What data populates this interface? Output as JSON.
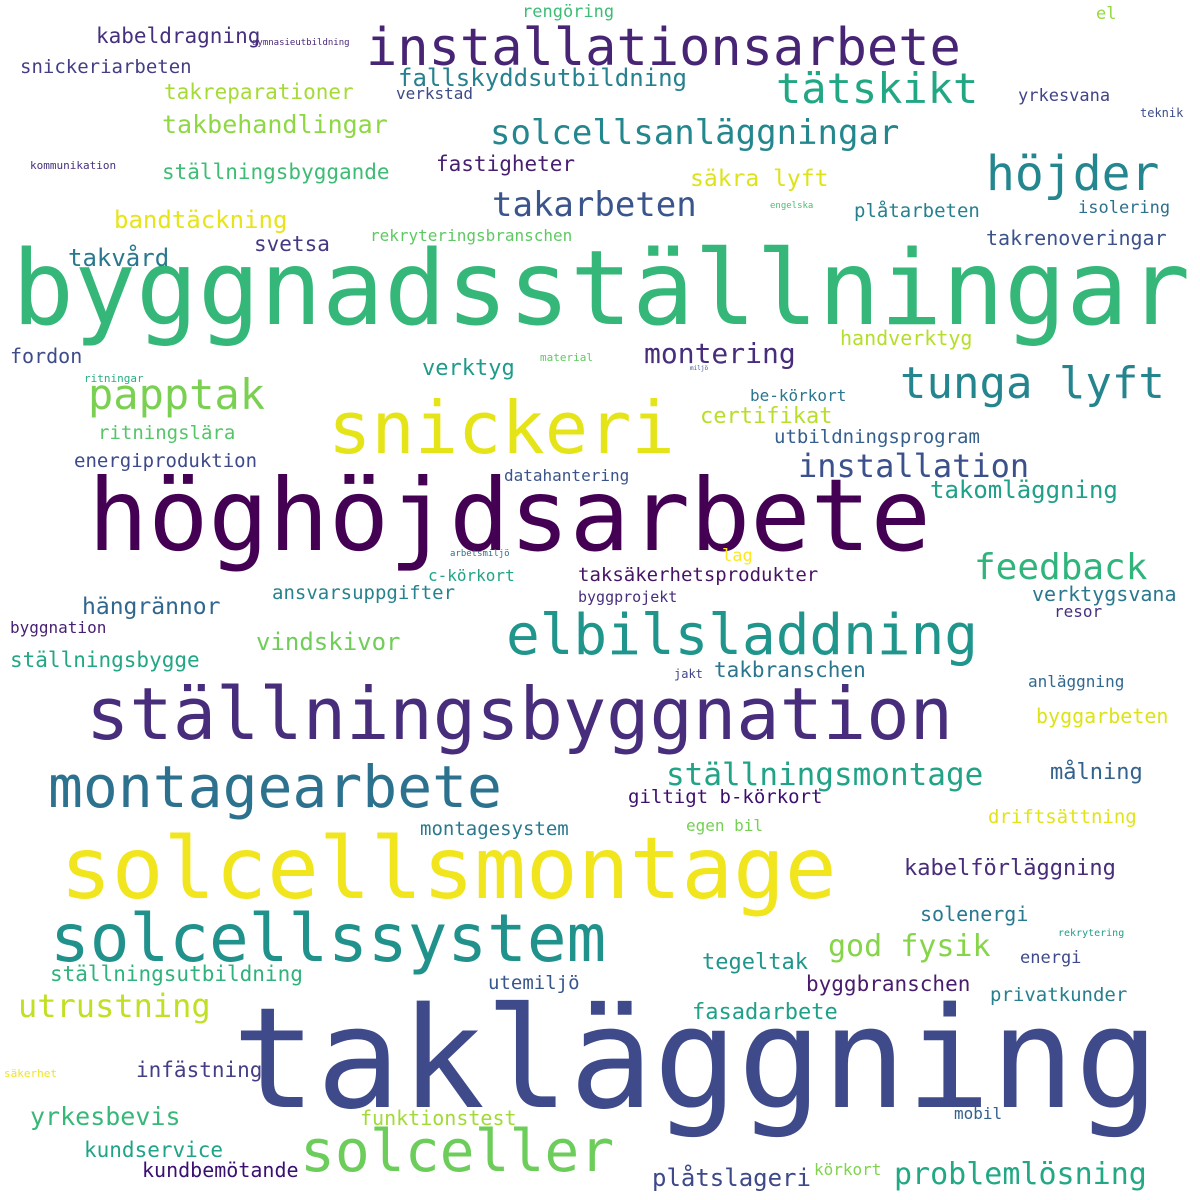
{
  "words": [
    {
      "text": "takläggning",
      "color": "#3f4a8a"
    },
    {
      "text": "byggnadsställningar",
      "color": "#35b779"
    },
    {
      "text": "höghöjdsarbete",
      "color": "#440154"
    },
    {
      "text": "solcellsmontage",
      "color": "#f1e51d"
    },
    {
      "text": "ställningsbyggnation",
      "color": "#472d7b"
    },
    {
      "text": "installationsarbete",
      "color": "#482475"
    },
    {
      "text": "solcellssystem",
      "color": "#21918c"
    },
    {
      "text": "elbilsladdning",
      "color": "#1f958b"
    },
    {
      "text": "montagearbete",
      "color": "#2c728e"
    },
    {
      "text": "snickeri",
      "color": "#e5e419"
    },
    {
      "text": "solceller",
      "color": "#6ccd5a"
    },
    {
      "text": "tunga lyft",
      "color": "#25858e"
    },
    {
      "text": "höjder",
      "color": "#24868e"
    },
    {
      "text": "tätskikt",
      "color": "#22a785"
    },
    {
      "text": "papptak",
      "color": "#7ad151"
    },
    {
      "text": "solcellsanläggningar",
      "color": "#24878e"
    },
    {
      "text": "installation",
      "color": "#3b518b"
    },
    {
      "text": "feedback",
      "color": "#2fb47c"
    },
    {
      "text": "ställningsmontage",
      "color": "#20a386"
    },
    {
      "text": "takarbeten",
      "color": "#39558c"
    },
    {
      "text": "montering",
      "color": "#472d7b"
    },
    {
      "text": "utrustning",
      "color": "#c2df23"
    },
    {
      "text": "problemlösning",
      "color": "#22a884"
    },
    {
      "text": "god fysik",
      "color": "#86d549"
    },
    {
      "text": "takomläggning",
      "color": "#1fa088"
    },
    {
      "text": "fallskyddsutbildning",
      "color": "#26818e"
    },
    {
      "text": "takbehandlingar",
      "color": "#8fd744"
    },
    {
      "text": "kabeldragning",
      "color": "#46307e"
    },
    {
      "text": "takreparationer",
      "color": "#a5db36"
    },
    {
      "text": "snickeriarbeten",
      "color": "#433e85"
    },
    {
      "text": "rengöring",
      "color": "#3cbc75"
    },
    {
      "text": "gymnasieutbildning",
      "color": "#482878"
    },
    {
      "text": "verkstad",
      "color": "#3e4989"
    },
    {
      "text": "yrkesvana",
      "color": "#414487"
    },
    {
      "text": "teknik",
      "color": "#3d4e8a"
    },
    {
      "text": "el",
      "color": "#95d840"
    },
    {
      "text": "kommunikation",
      "color": "#46327e"
    },
    {
      "text": "ställningsbyggande",
      "color": "#3dbc74"
    },
    {
      "text": "fastigheter",
      "color": "#481f70"
    },
    {
      "text": "säkra lyft",
      "color": "#dde318"
    },
    {
      "text": "engelska",
      "color": "#4ac16d"
    },
    {
      "text": "plåtarbeten",
      "color": "#27808e"
    },
    {
      "text": "isolering",
      "color": "#2d708e"
    },
    {
      "text": "bandtäckning",
      "color": "#e7e419"
    },
    {
      "text": "svetsa",
      "color": "#443983"
    },
    {
      "text": "rekryteringsbranschen",
      "color": "#5ec962"
    },
    {
      "text": "takrenoveringar",
      "color": "#3b528b"
    },
    {
      "text": "takvård",
      "color": "#2a788e"
    },
    {
      "text": "handverktyg",
      "color": "#b5de2b"
    },
    {
      "text": "fordon",
      "color": "#3e4c8a"
    },
    {
      "text": "material",
      "color": "#5ec962"
    },
    {
      "text": "ritningar",
      "color": "#29af7f"
    },
    {
      "text": "miljö",
      "color": "#3b528b"
    },
    {
      "text": "verktyg",
      "color": "#1e9b8a"
    },
    {
      "text": "be-körkort",
      "color": "#2a768e"
    },
    {
      "text": "certifikat",
      "color": "#b8de29"
    },
    {
      "text": "ritningslära",
      "color": "#54c568"
    },
    {
      "text": "utbildningsprogram",
      "color": "#355f8d"
    },
    {
      "text": "energiproduktion",
      "color": "#3e4989"
    },
    {
      "text": "datahantering",
      "color": "#3a538b"
    },
    {
      "text": "arbetsmiljö",
      "color": "#2c728e"
    },
    {
      "text": "lag",
      "color": "#fde725"
    },
    {
      "text": "c-körkort",
      "color": "#20a486"
    },
    {
      "text": "taksäkerhetsprodukter",
      "color": "#471365"
    },
    {
      "text": "hängrännor",
      "color": "#31668e"
    },
    {
      "text": "ansvarsuppgifter",
      "color": "#26828e"
    },
    {
      "text": "byggprojekt",
      "color": "#472f7d"
    },
    {
      "text": "verktygsvana",
      "color": "#2a788e"
    },
    {
      "text": "byggnation",
      "color": "#482071"
    },
    {
      "text": "resor",
      "color": "#462f7f"
    },
    {
      "text": "vindskivor",
      "color": "#6ece58"
    },
    {
      "text": "ställningsbygge",
      "color": "#22a785"
    },
    {
      "text": "takbranschen",
      "color": "#2b758e"
    },
    {
      "text": "jakt",
      "color": "#404688"
    },
    {
      "text": "anläggning",
      "color": "#31688e"
    },
    {
      "text": "byggarbeten",
      "color": "#dde318"
    },
    {
      "text": "målning",
      "color": "#33628d"
    },
    {
      "text": "giltigt b-körkort",
      "color": "#3b0f70"
    },
    {
      "text": "montagesystem",
      "color": "#2a788e"
    },
    {
      "text": "egen bil",
      "color": "#75d054"
    },
    {
      "text": "driftsättning",
      "color": "#e2e418"
    },
    {
      "text": "kabelförläggning",
      "color": "#472c7a"
    },
    {
      "text": "solenergi",
      "color": "#29798e"
    },
    {
      "text": "rekrytering",
      "color": "#1f9e89"
    },
    {
      "text": "tegeltak",
      "color": "#1f968b"
    },
    {
      "text": "energi",
      "color": "#3e4a89"
    },
    {
      "text": "ställningsutbildning",
      "color": "#2eb37c"
    },
    {
      "text": "utemiljö",
      "color": "#39568c"
    },
    {
      "text": "byggbranschen",
      "color": "#481b6d"
    },
    {
      "text": "privatkunder",
      "color": "#277f8e"
    },
    {
      "text": "fasadarbete",
      "color": "#1fa088"
    },
    {
      "text": "infästning",
      "color": "#433e85"
    },
    {
      "text": "säkerhet",
      "color": "#f1e51d"
    },
    {
      "text": "yrkesbevis",
      "color": "#37b878"
    },
    {
      "text": "funktionstest",
      "color": "#a2da37"
    },
    {
      "text": "mobil",
      "color": "#34618d"
    },
    {
      "text": "kundservice",
      "color": "#20a386"
    },
    {
      "text": "kundbemötande",
      "color": "#3b0f70"
    },
    {
      "text": "plåtslageri",
      "color": "#3e4989"
    },
    {
      "text": "körkort",
      "color": "#7fd34e"
    }
  ]
}
